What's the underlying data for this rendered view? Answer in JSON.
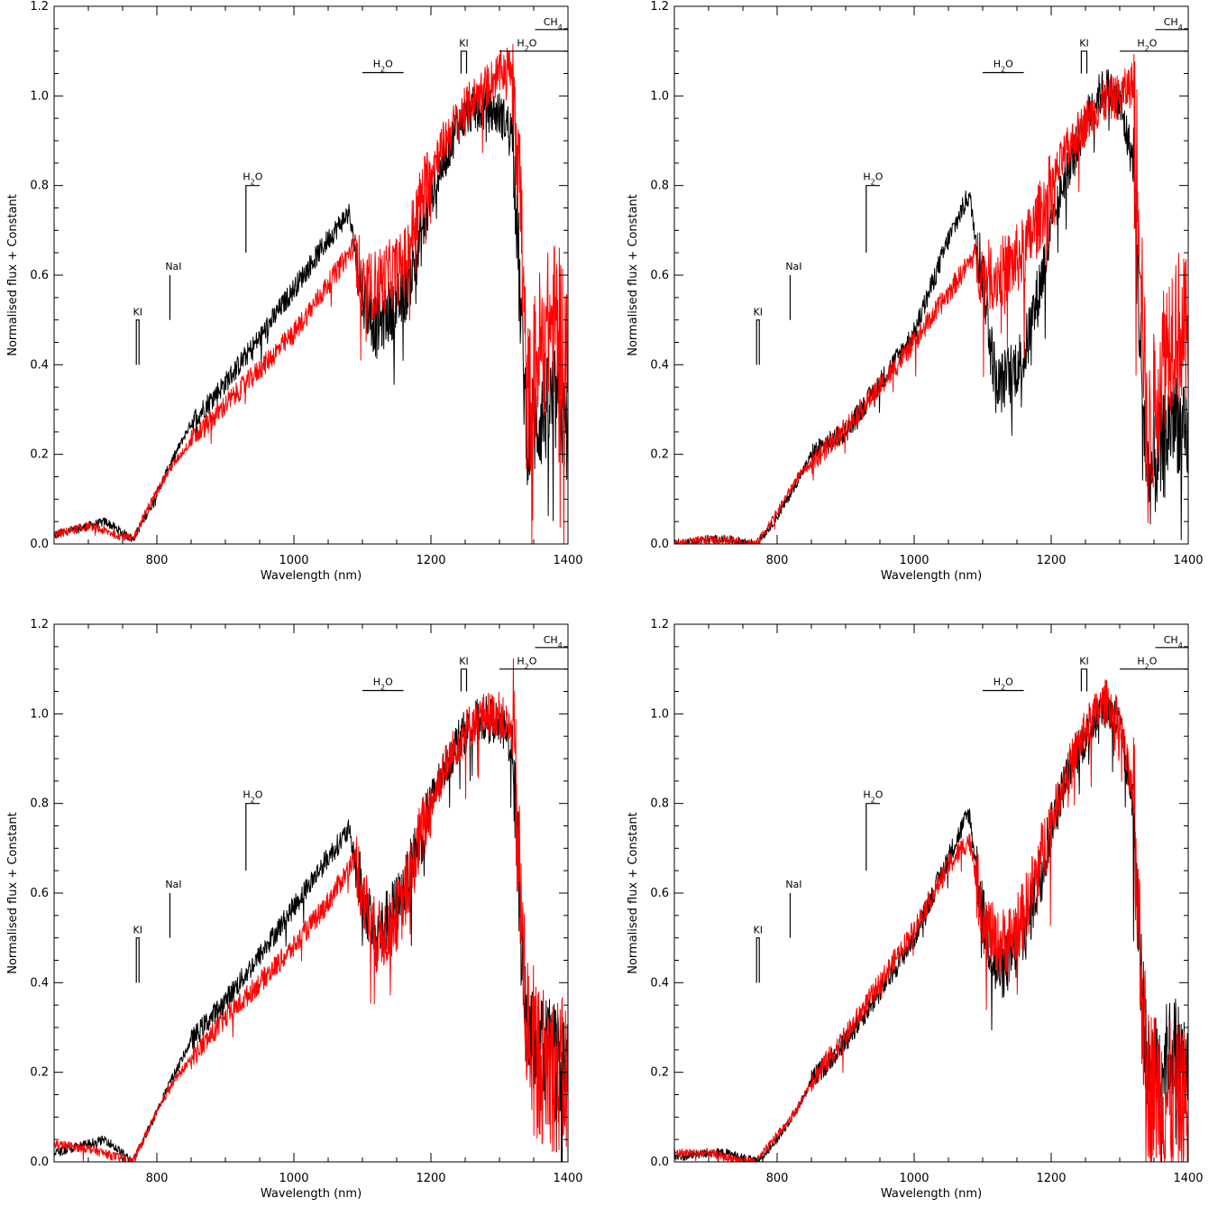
{
  "chart_data": [
    {
      "type": "line",
      "xlabel": "Wavelength (nm)",
      "ylabel": "Normalised flux + Constant",
      "xlim": [
        650,
        1400
      ],
      "ylim": [
        0,
        1.2
      ],
      "xticks": [
        800,
        1000,
        1200,
        1400
      ],
      "yticks": [
        0.0,
        0.2,
        0.4,
        0.6,
        0.8,
        1.0,
        1.2
      ],
      "series": [
        {
          "color": "#000000",
          "x": [
            650,
            700,
            725,
            765,
            790,
            820,
            850,
            900,
            950,
            1000,
            1050,
            1080,
            1100,
            1120,
            1140,
            1160,
            1180,
            1200,
            1220,
            1240,
            1260,
            1280,
            1300,
            1320,
            1330,
            1340,
            1360,
            1380,
            1400
          ],
          "y": [
            0.02,
            0.04,
            0.05,
            0.01,
            0.08,
            0.18,
            0.27,
            0.36,
            0.46,
            0.57,
            0.68,
            0.74,
            0.56,
            0.48,
            0.52,
            0.55,
            0.65,
            0.78,
            0.86,
            0.94,
            0.97,
            0.97,
            0.96,
            0.92,
            0.55,
            0.25,
            0.28,
            0.32,
            0.25
          ]
        },
        {
          "color": "#ff0000",
          "x": [
            650,
            700,
            765,
            790,
            820,
            850,
            900,
            950,
            1000,
            1050,
            1090,
            1100,
            1120,
            1140,
            1160,
            1180,
            1200,
            1220,
            1240,
            1260,
            1280,
            1300,
            1320,
            1330,
            1340,
            1360,
            1380,
            1400
          ],
          "y": [
            0.02,
            0.04,
            0.01,
            0.09,
            0.17,
            0.23,
            0.31,
            0.39,
            0.47,
            0.58,
            0.67,
            0.56,
            0.58,
            0.6,
            0.62,
            0.74,
            0.84,
            0.9,
            0.95,
            0.99,
            1.02,
            1.05,
            1.07,
            0.8,
            0.3,
            0.45,
            0.5,
            0.45
          ]
        }
      ],
      "annotations": [
        {
          "label": "KI",
          "x": 772,
          "y": 0.5
        },
        {
          "label": "NaI",
          "x": 819,
          "y": 0.6
        },
        {
          "label": "H2O",
          "x": 940,
          "y": 0.8
        },
        {
          "label": "H2O",
          "x": 1130,
          "y": 1.05
        },
        {
          "label": "KI",
          "x": 1250,
          "y": 1.1
        },
        {
          "label": "H2O",
          "x": 1340,
          "y": 1.1
        },
        {
          "label": "CH4",
          "x": 1378,
          "y": 1.15
        }
      ]
    },
    {
      "type": "line",
      "xlabel": "Wavelength (nm)",
      "ylabel": "Normalised flux + Constant",
      "xlim": [
        650,
        1400
      ],
      "ylim": [
        0,
        1.2
      ],
      "xticks": [
        800,
        1000,
        1200,
        1400
      ],
      "yticks": [
        0.0,
        0.2,
        0.4,
        0.6,
        0.8,
        1.0,
        1.2
      ],
      "series": [
        {
          "color": "#000000",
          "x": [
            650,
            700,
            725,
            770,
            800,
            830,
            850,
            900,
            950,
            1000,
            1050,
            1080,
            1100,
            1120,
            1140,
            1160,
            1180,
            1200,
            1220,
            1240,
            1260,
            1280,
            1300,
            1320,
            1330,
            1340,
            1360,
            1380,
            1400
          ],
          "y": [
            0.0,
            0.01,
            0.01,
            0.0,
            0.06,
            0.14,
            0.2,
            0.25,
            0.36,
            0.47,
            0.68,
            0.78,
            0.6,
            0.35,
            0.38,
            0.42,
            0.55,
            0.7,
            0.82,
            0.9,
            0.98,
            1.02,
            0.98,
            0.85,
            0.45,
            0.15,
            0.2,
            0.3,
            0.2
          ]
        },
        {
          "color": "#ff0000",
          "x": [
            650,
            700,
            725,
            770,
            800,
            830,
            850,
            900,
            950,
            1000,
            1050,
            1090,
            1100,
            1120,
            1140,
            1160,
            1180,
            1200,
            1220,
            1240,
            1260,
            1280,
            1300,
            1320,
            1330,
            1340,
            1360,
            1380,
            1400
          ],
          "y": [
            0.0,
            0.01,
            0.01,
            0.0,
            0.07,
            0.15,
            0.18,
            0.26,
            0.35,
            0.45,
            0.56,
            0.65,
            0.6,
            0.6,
            0.62,
            0.65,
            0.72,
            0.8,
            0.87,
            0.92,
            0.96,
            0.99,
            1.0,
            1.03,
            0.7,
            0.2,
            0.4,
            0.5,
            0.45
          ]
        }
      ],
      "annotations": [
        {
          "label": "KI",
          "x": 772,
          "y": 0.5
        },
        {
          "label": "NaI",
          "x": 819,
          "y": 0.6
        },
        {
          "label": "H2O",
          "x": 940,
          "y": 0.8
        },
        {
          "label": "H2O",
          "x": 1130,
          "y": 1.05
        },
        {
          "label": "KI",
          "x": 1250,
          "y": 1.1
        },
        {
          "label": "H2O",
          "x": 1340,
          "y": 1.1
        },
        {
          "label": "CH4",
          "x": 1378,
          "y": 1.15
        }
      ]
    },
    {
      "type": "line",
      "xlabel": "Wavelength (nm)",
      "ylabel": "Normalised flux + Constant",
      "xlim": [
        650,
        1400
      ],
      "ylim": [
        0,
        1.2
      ],
      "xticks": [
        800,
        1000,
        1200,
        1400
      ],
      "yticks": [
        0.0,
        0.2,
        0.4,
        0.6,
        0.8,
        1.0,
        1.2
      ],
      "series": [
        {
          "color": "#000000",
          "x": [
            650,
            700,
            725,
            765,
            790,
            820,
            850,
            900,
            950,
            1000,
            1050,
            1080,
            1100,
            1120,
            1140,
            1160,
            1180,
            1200,
            1220,
            1240,
            1260,
            1280,
            1300,
            1320,
            1330,
            1340,
            1360,
            1380,
            1400
          ],
          "y": [
            0.02,
            0.04,
            0.05,
            0.0,
            0.08,
            0.18,
            0.27,
            0.36,
            0.46,
            0.57,
            0.68,
            0.74,
            0.6,
            0.5,
            0.55,
            0.6,
            0.7,
            0.8,
            0.88,
            0.94,
            0.98,
            0.99,
            0.98,
            0.92,
            0.55,
            0.28,
            0.25,
            0.24,
            0.2
          ]
        },
        {
          "color": "#ff0000",
          "x": [
            650,
            700,
            765,
            790,
            820,
            850,
            900,
            950,
            1000,
            1050,
            1090,
            1100,
            1120,
            1140,
            1160,
            1180,
            1200,
            1220,
            1240,
            1260,
            1280,
            1300,
            1320,
            1330,
            1340,
            1360,
            1380,
            1400
          ],
          "y": [
            0.04,
            0.03,
            0.0,
            0.08,
            0.17,
            0.23,
            0.32,
            0.4,
            0.48,
            0.58,
            0.68,
            0.6,
            0.5,
            0.52,
            0.58,
            0.7,
            0.8,
            0.88,
            0.94,
            0.98,
            1.0,
            1.0,
            0.95,
            0.6,
            0.3,
            0.22,
            0.2,
            0.18
          ]
        }
      ],
      "annotations": [
        {
          "label": "KI",
          "x": 772,
          "y": 0.5
        },
        {
          "label": "NaI",
          "x": 819,
          "y": 0.6
        },
        {
          "label": "H2O",
          "x": 940,
          "y": 0.8
        },
        {
          "label": "H2O",
          "x": 1130,
          "y": 1.05
        },
        {
          "label": "KI",
          "x": 1250,
          "y": 1.1
        },
        {
          "label": "H2O",
          "x": 1340,
          "y": 1.1
        },
        {
          "label": "CH4",
          "x": 1378,
          "y": 1.15
        }
      ]
    },
    {
      "type": "line",
      "xlabel": "Wavelength (nm)",
      "ylabel": "Normalised flux + Constant",
      "xlim": [
        650,
        1400
      ],
      "ylim": [
        0,
        1.2
      ],
      "xticks": [
        800,
        1000,
        1200,
        1400
      ],
      "yticks": [
        0.0,
        0.2,
        0.4,
        0.6,
        0.8,
        1.0,
        1.2
      ],
      "series": [
        {
          "color": "#000000",
          "x": [
            650,
            700,
            725,
            770,
            800,
            830,
            850,
            900,
            950,
            1000,
            1050,
            1080,
            1100,
            1120,
            1140,
            1160,
            1180,
            1200,
            1220,
            1240,
            1260,
            1280,
            1300,
            1320,
            1330,
            1340,
            1360,
            1380,
            1400
          ],
          "y": [
            0.01,
            0.02,
            0.02,
            0.0,
            0.05,
            0.12,
            0.18,
            0.27,
            0.38,
            0.5,
            0.68,
            0.78,
            0.55,
            0.42,
            0.45,
            0.5,
            0.62,
            0.75,
            0.85,
            0.92,
            0.98,
            1.02,
            0.97,
            0.8,
            0.45,
            0.2,
            0.22,
            0.26,
            0.2
          ]
        },
        {
          "color": "#ff0000",
          "x": [
            650,
            700,
            725,
            770,
            800,
            830,
            850,
            900,
            950,
            1000,
            1050,
            1080,
            1100,
            1120,
            1140,
            1160,
            1180,
            1200,
            1220,
            1240,
            1260,
            1280,
            1300,
            1320,
            1330,
            1340,
            1360,
            1380,
            1400
          ],
          "y": [
            0.02,
            0.02,
            0.01,
            0.0,
            0.06,
            0.12,
            0.18,
            0.28,
            0.4,
            0.52,
            0.66,
            0.72,
            0.55,
            0.48,
            0.5,
            0.55,
            0.65,
            0.76,
            0.86,
            0.93,
            0.99,
            1.03,
            0.98,
            0.8,
            0.45,
            0.18,
            0.15,
            0.13,
            0.12
          ]
        }
      ],
      "annotations": [
        {
          "label": "KI",
          "x": 772,
          "y": 0.5
        },
        {
          "label": "NaI",
          "x": 819,
          "y": 0.6
        },
        {
          "label": "H2O",
          "x": 940,
          "y": 0.8
        },
        {
          "label": "H2O",
          "x": 1130,
          "y": 1.05
        },
        {
          "label": "KI",
          "x": 1250,
          "y": 1.1
        },
        {
          "label": "H2O",
          "x": 1340,
          "y": 1.1
        },
        {
          "label": "CH4",
          "x": 1378,
          "y": 1.15
        }
      ]
    }
  ]
}
